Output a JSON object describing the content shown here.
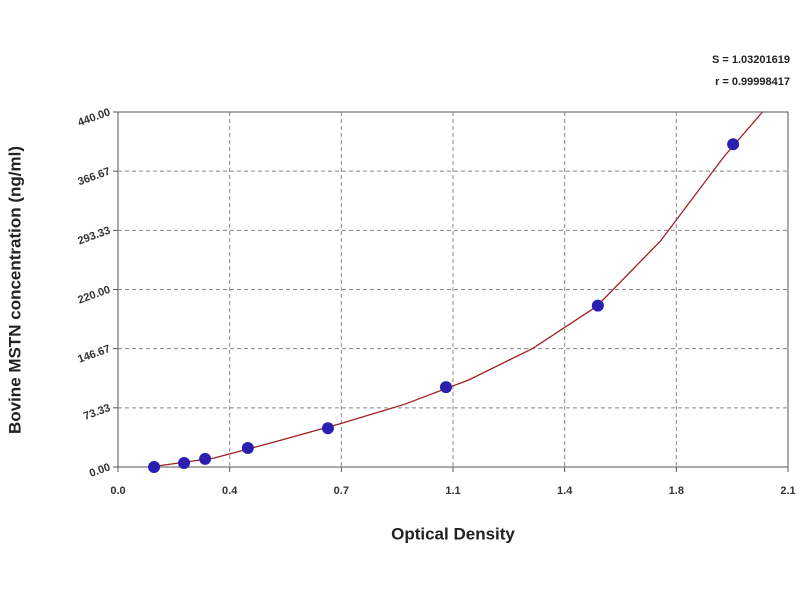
{
  "chart_data": {
    "type": "scatter",
    "annotations": [
      "S = 1.03201619",
      "r = 0.99998417"
    ],
    "x_label": "Optical Density",
    "y_label": "Bovine MSTN concentration (ng/ml)",
    "xlim": [
      0,
      2.1
    ],
    "ylim": [
      0,
      440
    ],
    "xticks": [
      {
        "value": 0,
        "label": "0.0"
      },
      {
        "value": 0.35,
        "label": "0.4"
      },
      0.7,
      {
        "value": 1.05,
        "label": "1.1"
      },
      1.4,
      {
        "value": 1.75,
        "label": "1.8"
      },
      2.1
    ],
    "yticks": [
      {
        "value": 0,
        "label": "0.00"
      },
      {
        "value": 73.33,
        "label": "73.33"
      },
      {
        "value": 146.67,
        "label": "146.67"
      },
      {
        "value": 220,
        "label": "220.00"
      },
      {
        "value": 293.33,
        "label": "293.33"
      },
      {
        "value": 366.67,
        "label": "366.67"
      },
      {
        "value": 440,
        "label": "440.00"
      }
    ],
    "grid": true,
    "series": [
      {
        "type": "line",
        "color": "#a02020",
        "x": [
          0.1,
          0.3,
          0.5,
          0.7,
          0.9,
          1.1,
          1.3,
          1.5,
          1.7,
          1.9,
          2.02
        ],
        "values": [
          0,
          11,
          32,
          54,
          78,
          108,
          147,
          199,
          280,
          385,
          440
        ]
      },
      {
        "type": "scatter",
        "color": "#2a1fb0",
        "x": [
          0.113,
          0.207,
          0.273,
          0.407,
          0.658,
          1.028,
          1.504,
          1.928
        ],
        "values": [
          0,
          5,
          10,
          23.5,
          48,
          99,
          200,
          400
        ]
      }
    ]
  }
}
